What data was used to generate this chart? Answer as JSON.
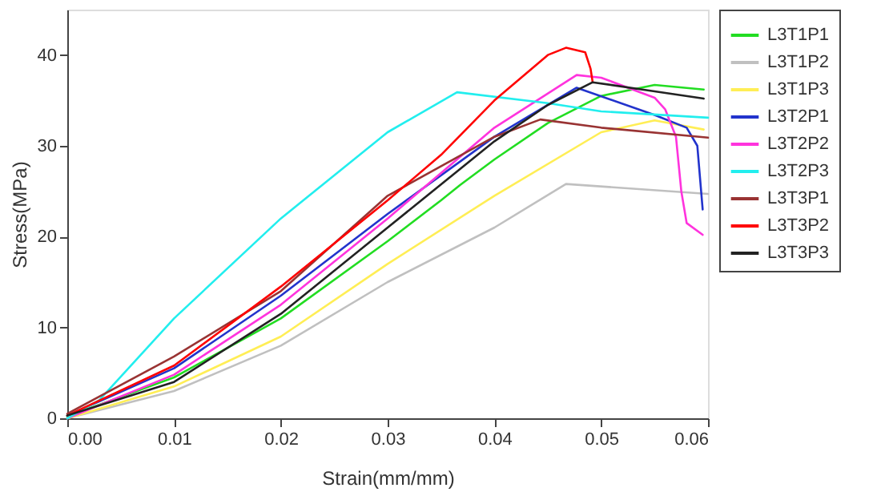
{
  "chart_data": {
    "type": "line",
    "xlabel": "Strain(mm/mm)",
    "ylabel": "Stress(MPa)",
    "xlim": [
      0,
      0.06
    ],
    "ylim": [
      0,
      45
    ],
    "xticks": [
      {
        "value": 0,
        "label": "0.00"
      },
      0.01,
      0.02,
      0.03,
      0.04,
      0.05,
      0.06
    ],
    "yticks": [
      0,
      10,
      20,
      30,
      40
    ],
    "grid": false,
    "legend": "right",
    "line_style": "solid",
    "marker": "none",
    "series": [
      {
        "name": "L3T1P1",
        "color": "#22dd22",
        "x": [
          0,
          0.01,
          0.02,
          0.03,
          0.035,
          0.0368,
          0.04,
          0.045,
          0.05,
          0.055,
          0.0596
        ],
        "values": [
          0.2,
          4.5,
          11,
          19.5,
          24,
          25.7,
          28.5,
          32.5,
          35.5,
          36.7,
          36.2
        ]
      },
      {
        "name": "L3T1P2",
        "color": "#c0c0c0",
        "x": [
          0,
          0.01,
          0.02,
          0.03,
          0.04,
          0.0467,
          0.06
        ],
        "values": [
          0,
          3,
          8,
          15,
          21,
          25.8,
          24.7
        ]
      },
      {
        "name": "L3T1P3",
        "color": "#ffee55",
        "x": [
          0,
          0.01,
          0.02,
          0.03,
          0.04,
          0.05,
          0.055,
          0.0596
        ],
        "values": [
          0,
          3.5,
          9,
          17,
          24.5,
          31.5,
          32.8,
          31.8
        ]
      },
      {
        "name": "L3T2P1",
        "color": "#2233cc",
        "x": [
          0,
          0.01,
          0.02,
          0.03,
          0.04,
          0.0477,
          0.055,
          0.058,
          0.059,
          0.0595
        ],
        "values": [
          0.3,
          5.5,
          13.5,
          22.5,
          31,
          36.4,
          33.4,
          32,
          30,
          23
        ]
      },
      {
        "name": "L3T2P2",
        "color": "#ff33dd",
        "x": [
          0,
          0.01,
          0.02,
          0.03,
          0.04,
          0.0477,
          0.05,
          0.055,
          0.056,
          0.057,
          0.0575,
          0.058,
          0.0595
        ],
        "values": [
          0,
          4.8,
          12.5,
          22,
          32,
          37.8,
          37.5,
          35.3,
          34,
          31,
          25,
          21.5,
          20.2
        ]
      },
      {
        "name": "L3T2P3",
        "color": "#22eeee",
        "x": [
          0,
          0.003,
          0.01,
          0.02,
          0.03,
          0.0365,
          0.045,
          0.05,
          0.06
        ],
        "values": [
          0,
          2,
          11,
          22,
          31.5,
          35.9,
          34.7,
          33.8,
          33.1
        ]
      },
      {
        "name": "L3T3P1",
        "color": "#993333",
        "x": [
          0,
          0.01,
          0.02,
          0.03,
          0.04,
          0.0443,
          0.05,
          0.06
        ],
        "values": [
          0.5,
          6.8,
          14,
          24.5,
          31,
          32.9,
          32,
          30.9
        ]
      },
      {
        "name": "L3T3P2",
        "color": "#ff0000",
        "x": [
          0,
          0.01,
          0.02,
          0.03,
          0.035,
          0.04,
          0.045,
          0.0467,
          0.0485,
          0.049,
          0.0492
        ],
        "values": [
          0.3,
          5.8,
          14.5,
          24,
          29,
          35,
          40,
          40.8,
          40.3,
          38.5,
          37
        ]
      },
      {
        "name": "L3T3P3",
        "color": "#222222",
        "x": [
          0,
          0.01,
          0.02,
          0.03,
          0.04,
          0.045,
          0.0492,
          0.055,
          0.0596
        ],
        "values": [
          0.3,
          4,
          11.5,
          21,
          30.5,
          34.5,
          37,
          36,
          35.2
        ]
      }
    ]
  }
}
